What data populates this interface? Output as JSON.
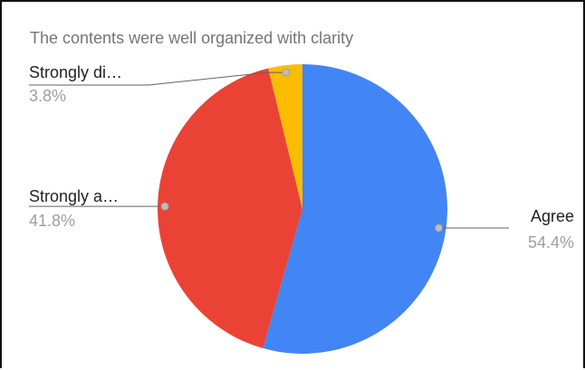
{
  "chart_data": {
    "type": "pie",
    "title": "The contents were well organized with clarity",
    "slices": [
      {
        "label": "Agree",
        "value": 54.4,
        "display": "54.4%",
        "color": "#4285f4"
      },
      {
        "label": "Strongly a…",
        "value": 41.8,
        "display": "41.8%",
        "color": "#ea4335"
      },
      {
        "label": "Strongly di…",
        "value": 3.8,
        "display": "3.8%",
        "color": "#fbbc04"
      }
    ],
    "legend": "none",
    "start_angle_deg": 0,
    "direction": "clockwise"
  }
}
